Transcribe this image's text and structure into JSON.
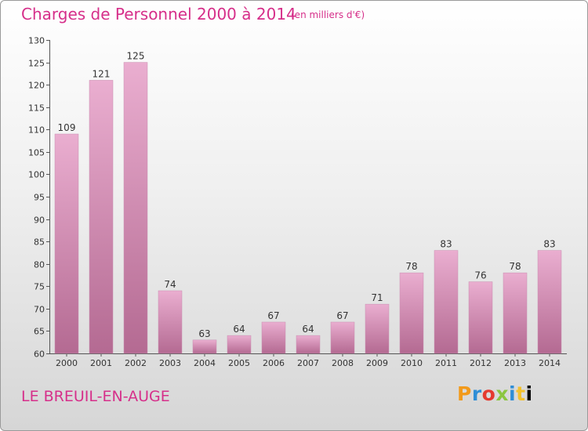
{
  "header": {
    "title": "Charges de Personnel 2000 à 2014",
    "unit": "(en milliers d'€)"
  },
  "footer": {
    "commune": "LE BREUIL-EN-AUGE",
    "logo": "Proxiti"
  },
  "colors": {
    "title": "#d62f8a",
    "bar_light": "#e9a9cd",
    "bar_dark": "#b4688f"
  },
  "chart_data": {
    "type": "bar",
    "title": "Charges de Personnel 2000 à 2014",
    "subtitle": "(en milliers d'€)",
    "xlabel": "",
    "ylabel": "",
    "categories": [
      "2000",
      "2001",
      "2002",
      "2003",
      "2004",
      "2005",
      "2006",
      "2007",
      "2008",
      "2009",
      "2010",
      "2011",
      "2012",
      "2013",
      "2014"
    ],
    "values": [
      109,
      121,
      125,
      74,
      63,
      64,
      67,
      64,
      67,
      71,
      78,
      83,
      76,
      78,
      83
    ],
    "ylim": [
      60,
      130
    ],
    "yticks": [
      60,
      65,
      70,
      75,
      80,
      85,
      90,
      95,
      100,
      105,
      110,
      115,
      120,
      125,
      130
    ],
    "grid": false,
    "data_labels": true
  }
}
